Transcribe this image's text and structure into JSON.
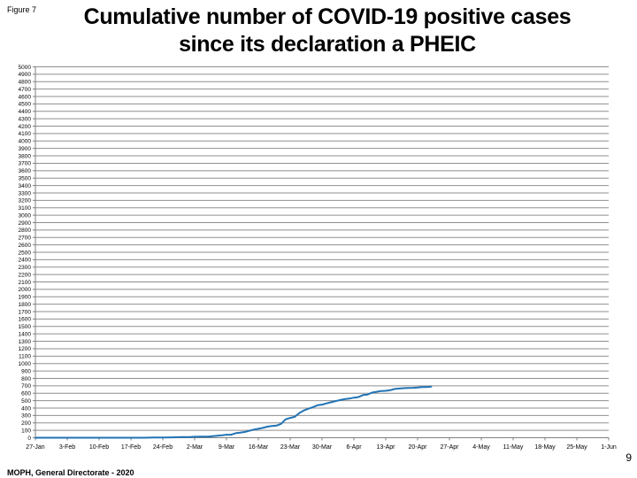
{
  "figure_label": "Figure 7",
  "title_line1": "Cumulative number of COVID-19 positive cases",
  "title_line2": "since its declaration a PHEIC",
  "footer": "MOPH, General Directorate - 2020",
  "page_number": "9",
  "chart_data": {
    "type": "line",
    "title": "Cumulative number of COVID-19 positive cases since its declaration a PHEIC",
    "xlabel": "",
    "ylabel": "",
    "ylim": [
      0,
      5000
    ],
    "ytick_step": 100,
    "x_tick_labels": [
      "27-Jan",
      "3-Feb",
      "10-Feb",
      "17-Feb",
      "24-Feb",
      "2-Mar",
      "9-Mar",
      "16-Mar",
      "23-Mar",
      "30-Mar",
      "6-Apr",
      "13-Apr",
      "20-Apr",
      "27-Apr",
      "4-May",
      "11-May",
      "18-May",
      "25-May",
      "1-Jun"
    ],
    "x_tick_interval_days": 7,
    "x_range_days": [
      0,
      126
    ],
    "grid": "horizontal",
    "legend": "none",
    "line_color": "#2173b4",
    "gridline_color": "#8f8f8f",
    "axis_color": "#7f7f7f",
    "series": [
      {
        "name": "Cumulative COVID-19 positive cases",
        "points": [
          [
            0,
            0
          ],
          [
            24,
            0
          ],
          [
            25,
            1
          ],
          [
            26,
            2
          ],
          [
            27,
            3
          ],
          [
            28,
            4
          ],
          [
            30,
            5
          ],
          [
            32,
            8
          ],
          [
            34,
            10
          ],
          [
            35,
            13
          ],
          [
            37,
            15
          ],
          [
            38,
            16
          ],
          [
            39,
            22
          ],
          [
            40,
            28
          ],
          [
            41,
            32
          ],
          [
            42,
            41
          ],
          [
            43,
            41
          ],
          [
            44,
            61
          ],
          [
            45,
            68
          ],
          [
            46,
            77
          ],
          [
            47,
            93
          ],
          [
            48,
            110
          ],
          [
            49,
            120
          ],
          [
            50,
            133
          ],
          [
            51,
            149
          ],
          [
            52,
            157
          ],
          [
            53,
            163
          ],
          [
            54,
            187
          ],
          [
            55,
            248
          ],
          [
            56,
            267
          ],
          [
            57,
            282
          ],
          [
            58,
            333
          ],
          [
            59,
            368
          ],
          [
            60,
            391
          ],
          [
            61,
            412
          ],
          [
            62,
            438
          ],
          [
            63,
            446
          ],
          [
            64,
            463
          ],
          [
            65,
            479
          ],
          [
            66,
            494
          ],
          [
            67,
            508
          ],
          [
            68,
            520
          ],
          [
            69,
            527
          ],
          [
            70,
            541
          ],
          [
            71,
            548
          ],
          [
            72,
            575
          ],
          [
            73,
            582
          ],
          [
            74,
            609
          ],
          [
            75,
            619
          ],
          [
            76,
            630
          ],
          [
            77,
            632
          ],
          [
            78,
            641
          ],
          [
            79,
            658
          ],
          [
            80,
            663
          ],
          [
            81,
            668
          ],
          [
            82,
            672
          ],
          [
            83,
            673
          ],
          [
            84,
            677
          ],
          [
            85,
            682
          ],
          [
            86,
            682
          ],
          [
            87,
            688
          ]
        ]
      }
    ]
  }
}
